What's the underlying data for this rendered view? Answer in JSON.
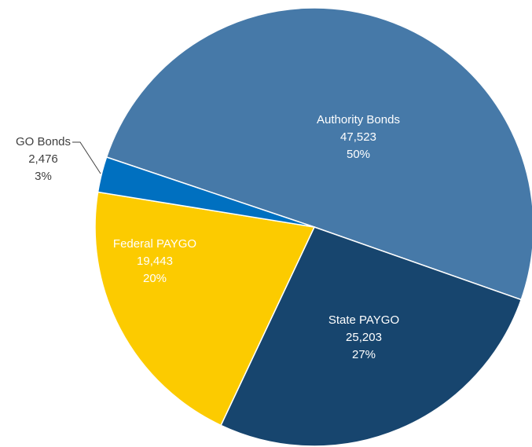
{
  "chart_data": {
    "type": "pie",
    "categories": [
      "Authority Bonds",
      "State PAYGO",
      "Federal PAYGO",
      "GO Bonds"
    ],
    "values": [
      47523,
      25203,
      19443,
      2476
    ],
    "value_labels": [
      "47,523",
      "25,203",
      "19,443",
      "2,476"
    ],
    "percents": [
      50,
      27,
      20,
      3
    ],
    "percent_labels": [
      "50%",
      "27%",
      "20%",
      "3%"
    ],
    "colors": [
      "#4679a8",
      "#17456e",
      "#fccb00",
      "#0070c0"
    ]
  }
}
